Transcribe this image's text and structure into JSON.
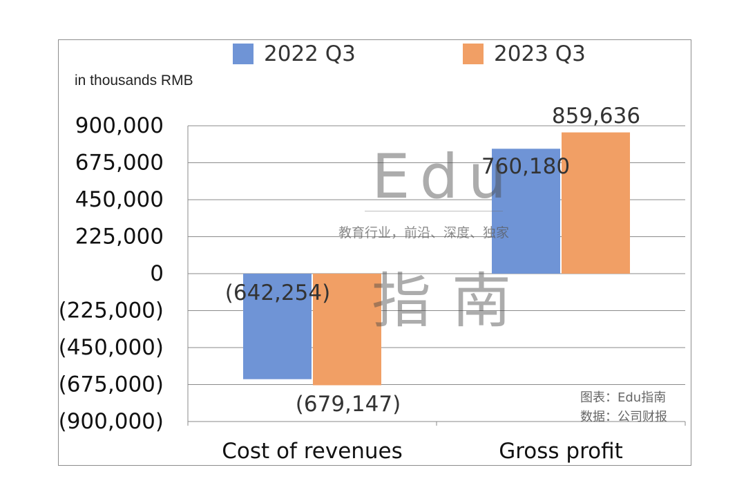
{
  "chart_data": {
    "type": "bar",
    "unit_label": "in thousands RMB",
    "categories": [
      "Cost of revenues",
      "Gross profit"
    ],
    "series": [
      {
        "name": "2022 Q3",
        "color": "#6f94d6",
        "values": [
          -642254,
          760180
        ],
        "labels": [
          "(642,254)",
          "760,180"
        ]
      },
      {
        "name": "2023 Q3",
        "color": "#f19f65",
        "values": [
          -679147,
          859636
        ],
        "labels": [
          "(679,147)",
          "859,636"
        ]
      }
    ],
    "ylim": [
      -900000,
      900000
    ],
    "yticks": [
      900000,
      675000,
      450000,
      225000,
      0,
      -225000,
      -450000,
      -675000,
      -900000
    ],
    "ytick_labels": [
      "900,000",
      "675,000",
      "450,000",
      "225,000",
      "0",
      "(225,000)",
      "(450,000)",
      "(675,000)",
      "(900,000)"
    ],
    "grid": true,
    "legend_position": "top"
  },
  "watermark": {
    "brand": "Edu",
    "tagline": "教育行业，前沿、深度、独家",
    "brand_cn": "指南"
  },
  "credits": {
    "chart_by": "图表：Edu指南",
    "source": "数据：公司财报"
  }
}
